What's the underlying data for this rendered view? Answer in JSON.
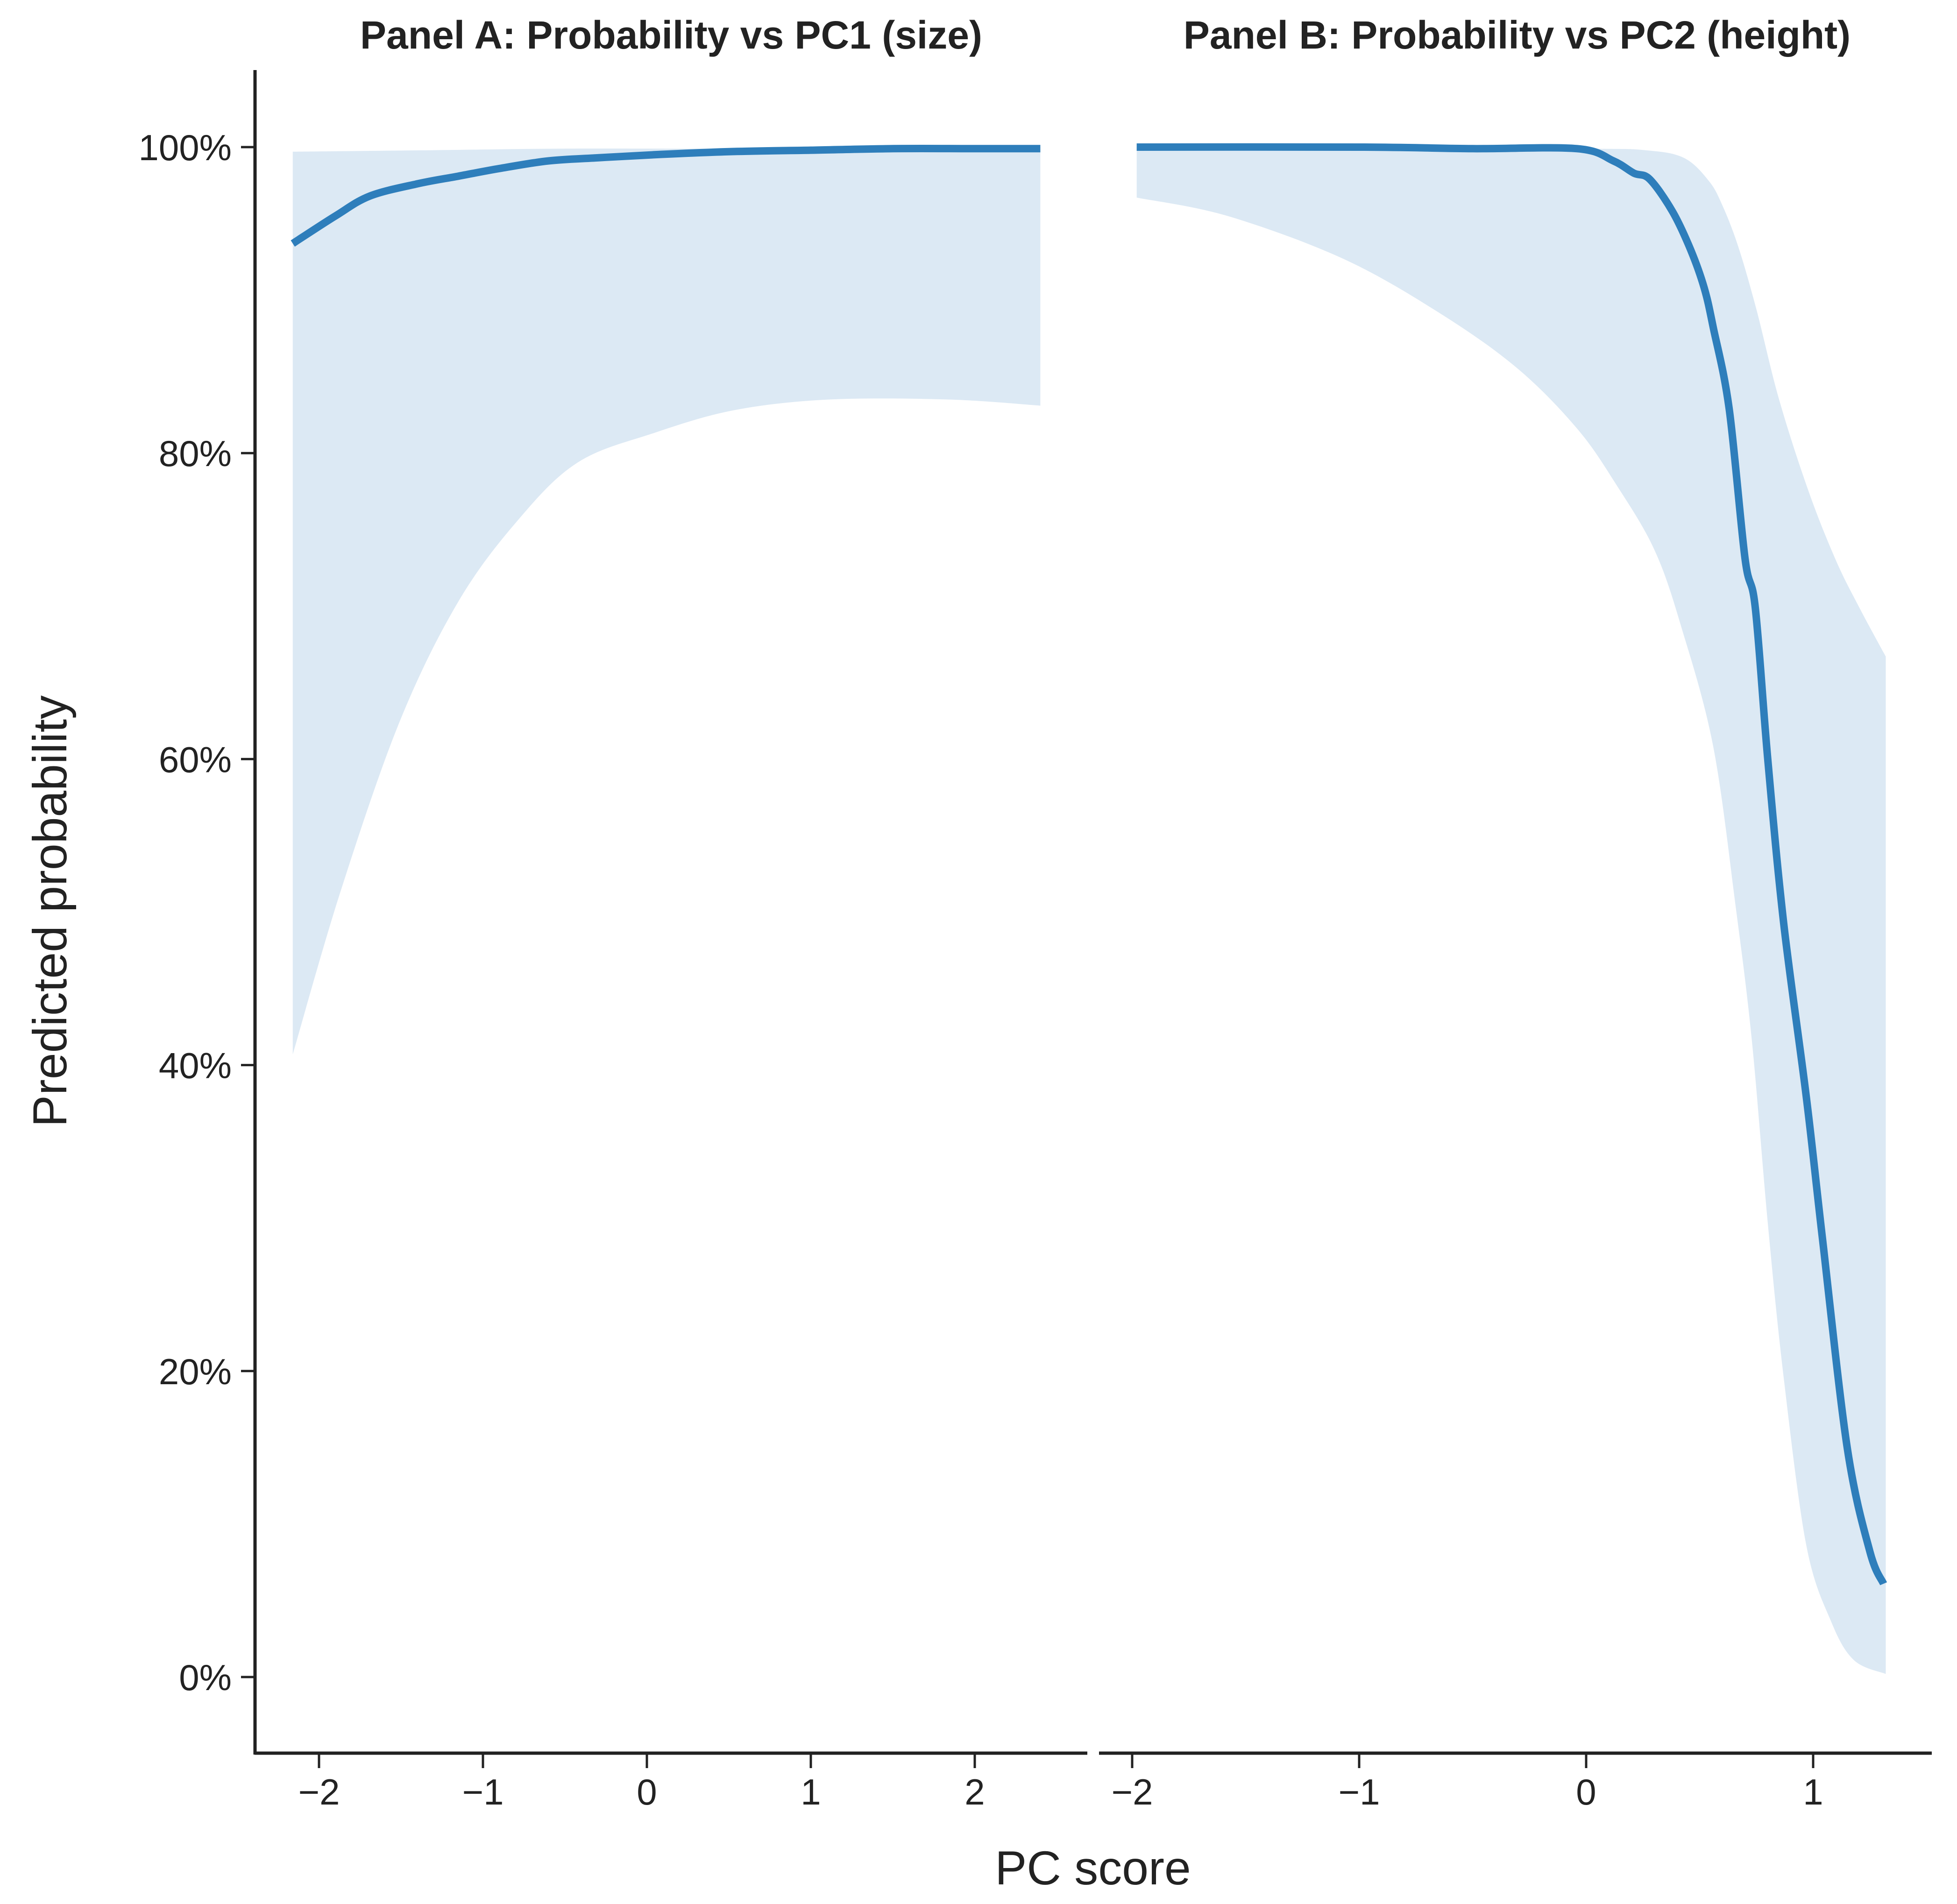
{
  "figure": {
    "x_axis_title": "PC score",
    "y_axis_title": "Predicted probability",
    "colors": {
      "line": "#2e7ebb",
      "ribbon": "#dce9f4",
      "axis": "#222222",
      "text": "#222222",
      "background": "#ffffff"
    }
  },
  "chart_data": [
    {
      "type": "line",
      "panel": "A",
      "title": "Panel A: Probability vs PC1 (size)",
      "xlabel": "PC score",
      "ylabel": "Predicted probability",
      "xlim": [
        -2.4,
        2.7
      ],
      "ylim": [
        -0.05,
        1.05
      ],
      "x_ticks": [
        -2,
        -1,
        0,
        1,
        2
      ],
      "x_tick_labels": [
        "−2",
        "−1",
        "0",
        "1",
        "2"
      ],
      "y_ticks": [
        0,
        0.2,
        0.4,
        0.6,
        0.8,
        1.0
      ],
      "y_tick_labels": [
        "0%",
        "20%",
        "40%",
        "60%",
        "80%",
        "100%"
      ],
      "grid": false,
      "legend": null,
      "series": [
        {
          "name": "Predicted probability",
          "style": "line",
          "x": [
            -2.16,
            -1.9,
            -1.69,
            -1.4,
            -1.15,
            -0.9,
            -0.6,
            -0.3,
            0.04,
            0.5,
            1.0,
            1.5,
            2.0,
            2.4
          ],
          "y": [
            0.937,
            0.955,
            0.968,
            0.976,
            0.981,
            0.986,
            0.991,
            0.993,
            0.995,
            0.997,
            0.998,
            0.999,
            0.999,
            0.999
          ]
        },
        {
          "name": "95% CI upper",
          "style": "ribbon-upper",
          "x": [
            -2.16,
            -1.3,
            -0.5,
            0.5,
            1.5,
            2.4
          ],
          "y": [
            0.997,
            0.998,
            0.999,
            0.999,
            1.0,
            1.0
          ]
        },
        {
          "name": "95% CI lower",
          "style": "ribbon-lower",
          "x": [
            -2.16,
            -1.87,
            -1.51,
            -1.15,
            -0.78,
            -0.42,
            0.04,
            0.53,
            1.11,
            1.84,
            2.4
          ],
          "y": [
            0.407,
            0.513,
            0.624,
            0.703,
            0.757,
            0.794,
            0.813,
            0.828,
            0.835,
            0.835,
            0.831
          ]
        }
      ]
    },
    {
      "type": "line",
      "panel": "B",
      "title": "Panel B: Probability vs PC2 (height)",
      "xlabel": "PC score",
      "ylabel": "Predicted probability",
      "xlim": [
        -2.15,
        1.52
      ],
      "ylim": [
        -0.05,
        1.05
      ],
      "x_ticks": [
        -2,
        -1,
        0,
        1
      ],
      "x_tick_labels": [
        "−2",
        "−1",
        "0",
        "1"
      ],
      "y_ticks": [
        0,
        0.2,
        0.4,
        0.6,
        0.8,
        1.0
      ],
      "y_tick_labels": [
        "0%",
        "20%",
        "40%",
        "60%",
        "80%",
        "100%"
      ],
      "grid": false,
      "legend": null,
      "series": [
        {
          "name": "Predicted probability",
          "style": "line",
          "x": [
            -1.98,
            -1.0,
            -0.5,
            -0.04,
            0.12,
            0.21,
            0.28,
            0.38,
            0.46,
            0.52,
            0.56,
            0.63,
            0.7,
            0.745,
            0.8,
            0.87,
            0.97,
            1.04,
            1.15,
            1.25,
            1.31
          ],
          "y": [
            1.0,
            1.0,
            0.999,
            0.999,
            0.991,
            0.983,
            0.979,
            0.958,
            0.933,
            0.908,
            0.882,
            0.829,
            0.731,
            0.699,
            0.6,
            0.493,
            0.379,
            0.288,
            0.15,
            0.082,
            0.061
          ]
        },
        {
          "name": "95% CI upper",
          "style": "ribbon-upper",
          "x": [
            -1.98,
            -1.0,
            0.0,
            0.26,
            0.43,
            0.54,
            0.6,
            0.67,
            0.75,
            0.85,
            0.98,
            1.1,
            1.2,
            1.32
          ],
          "y": [
            1.0,
            1.0,
            0.999,
            0.998,
            0.993,
            0.978,
            0.962,
            0.935,
            0.894,
            0.835,
            0.775,
            0.73,
            0.7,
            0.667
          ]
        },
        {
          "name": "95% CI lower",
          "style": "ribbon-lower",
          "x": [
            -1.98,
            -1.58,
            -1.07,
            -0.64,
            -0.3,
            -0.04,
            0.13,
            0.3,
            0.42,
            0.56,
            0.66,
            0.73,
            0.8,
            0.87,
            0.97,
            1.08,
            1.18,
            1.32
          ],
          "y": [
            0.967,
            0.955,
            0.927,
            0.891,
            0.855,
            0.816,
            0.78,
            0.737,
            0.686,
            0.608,
            0.502,
            0.416,
            0.297,
            0.196,
            0.086,
            0.036,
            0.011,
            0.002
          ]
        }
      ]
    }
  ]
}
